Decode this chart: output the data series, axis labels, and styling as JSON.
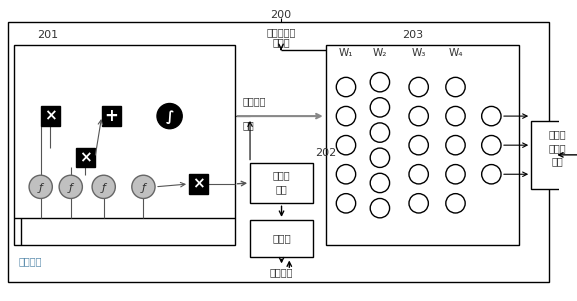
{
  "title_number": "200",
  "label_201": "201",
  "label_202": "202",
  "label_203": "203",
  "text_top_line1": "应对措施真",
  "text_top_line2": "实数据",
  "text_balance_line1": "平衡表示",
  "text_balance_line2": "参数",
  "text_gradient_line1": "梯度逆",
  "text_gradient_line2": "转层",
  "text_classifier": "分类器",
  "text_loss": "分类损失",
  "text_training": "训练样本",
  "text_output_line1": "输出变",
  "text_output_line2": "量预测",
  "text_output_line3": "数据",
  "w_labels": [
    "W₁",
    "W₂",
    "W₃",
    "W₄"
  ],
  "text_color": "#333333",
  "gray_color": "#888888",
  "blue_label_color": "#5588aa"
}
